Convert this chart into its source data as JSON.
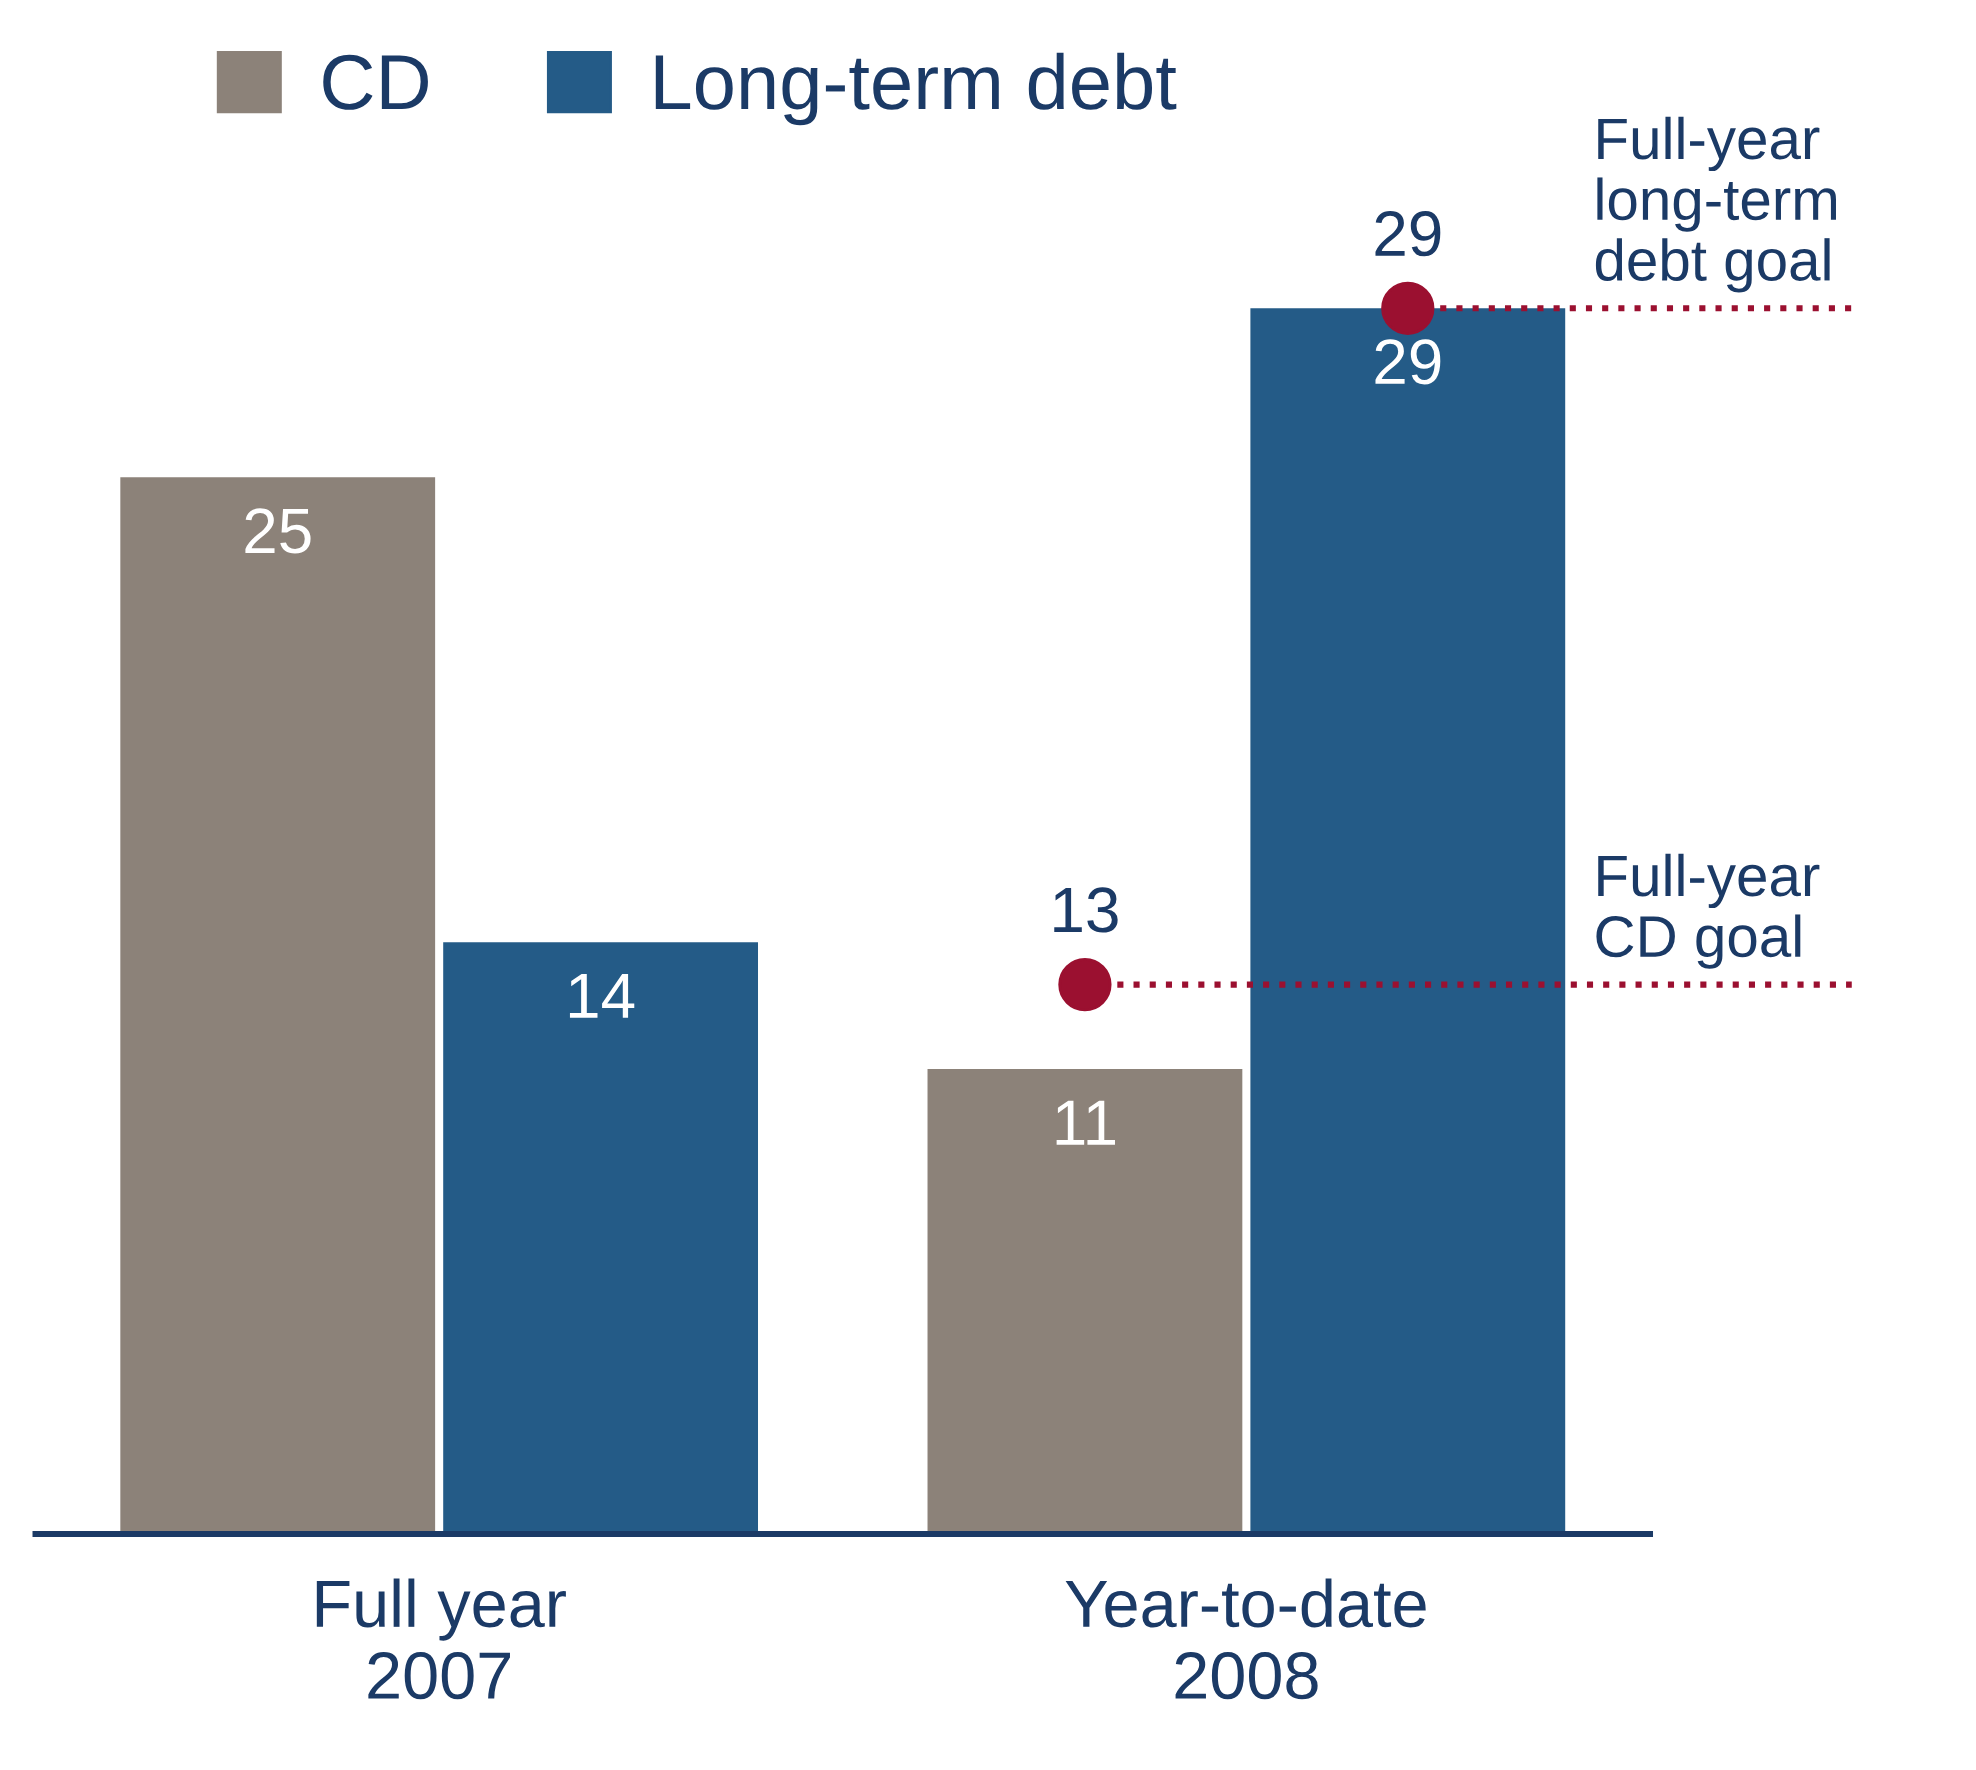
{
  "chart_data": {
    "type": "bar",
    "categories": [
      "Full year\n2007",
      "Year-to-date\n2008"
    ],
    "series": [
      {
        "name": "CD",
        "color": "#8c8279",
        "values": [
          25,
          11
        ]
      },
      {
        "name": "Long-term debt",
        "color": "#245b87",
        "values": [
          14,
          29
        ]
      },
      {
        "type": "scatter",
        "color": "#9b1030",
        "marker": "circle",
        "x": [
          "Year-to-date\n2008",
          "Year-to-date\n2008"
        ],
        "values": [
          13,
          29
        ],
        "value_labels": [
          "13",
          "29"
        ]
      }
    ],
    "ref_lines": [
      {
        "axis": "y",
        "value": 13,
        "label": "Full-year\nCD goal",
        "color": "#9b1030",
        "line_style": "dotted"
      },
      {
        "axis": "y",
        "value": 29,
        "label": "Full-year\nlong-term\ndebt goal",
        "color": "#9b1030",
        "line_style": "dotted"
      }
    ],
    "data_labels": true,
    "legend": "top left",
    "tick_labels": "x"
  }
}
